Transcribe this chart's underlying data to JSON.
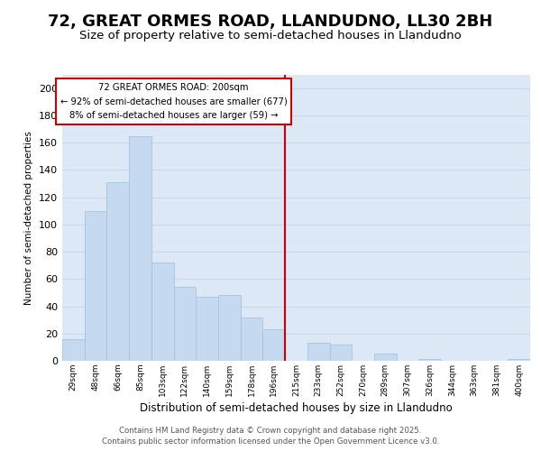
{
  "title": "72, GREAT ORMES ROAD, LLANDUDNO, LL30 2BH",
  "subtitle": "Size of property relative to semi-detached houses in Llandudno",
  "xlabel": "Distribution of semi-detached houses by size in Llandudno",
  "ylabel": "Number of semi-detached properties",
  "categories": [
    "29sqm",
    "48sqm",
    "66sqm",
    "85sqm",
    "103sqm",
    "122sqm",
    "140sqm",
    "159sqm",
    "178sqm",
    "196sqm",
    "215sqm",
    "233sqm",
    "252sqm",
    "270sqm",
    "289sqm",
    "307sqm",
    "326sqm",
    "344sqm",
    "363sqm",
    "381sqm",
    "400sqm"
  ],
  "values": [
    16,
    110,
    131,
    165,
    72,
    54,
    47,
    48,
    32,
    23,
    0,
    13,
    12,
    0,
    5,
    0,
    1,
    0,
    0,
    0,
    1
  ],
  "bar_color": "#c5d9f0",
  "bar_edge_color": "#a8c4e0",
  "red_line_x": 9.5,
  "annotation_title": "72 GREAT ORMES ROAD: 200sqm",
  "annotation_line1": "← 92% of semi-detached houses are smaller (677)",
  "annotation_line2": "8% of semi-detached houses are larger (59) →",
  "annotation_color": "#cc0000",
  "ylim": [
    0,
    210
  ],
  "yticks": [
    0,
    20,
    40,
    60,
    80,
    100,
    120,
    140,
    160,
    180,
    200
  ],
  "background_color": "#ffffff",
  "plot_background": "#dce8f5",
  "footer1": "Contains HM Land Registry data © Crown copyright and database right 2025.",
  "footer2": "Contains public sector information licensed under the Open Government Licence v3.0.",
  "grid_color": "#c8d8ec",
  "title_fontsize": 13,
  "subtitle_fontsize": 9.5
}
